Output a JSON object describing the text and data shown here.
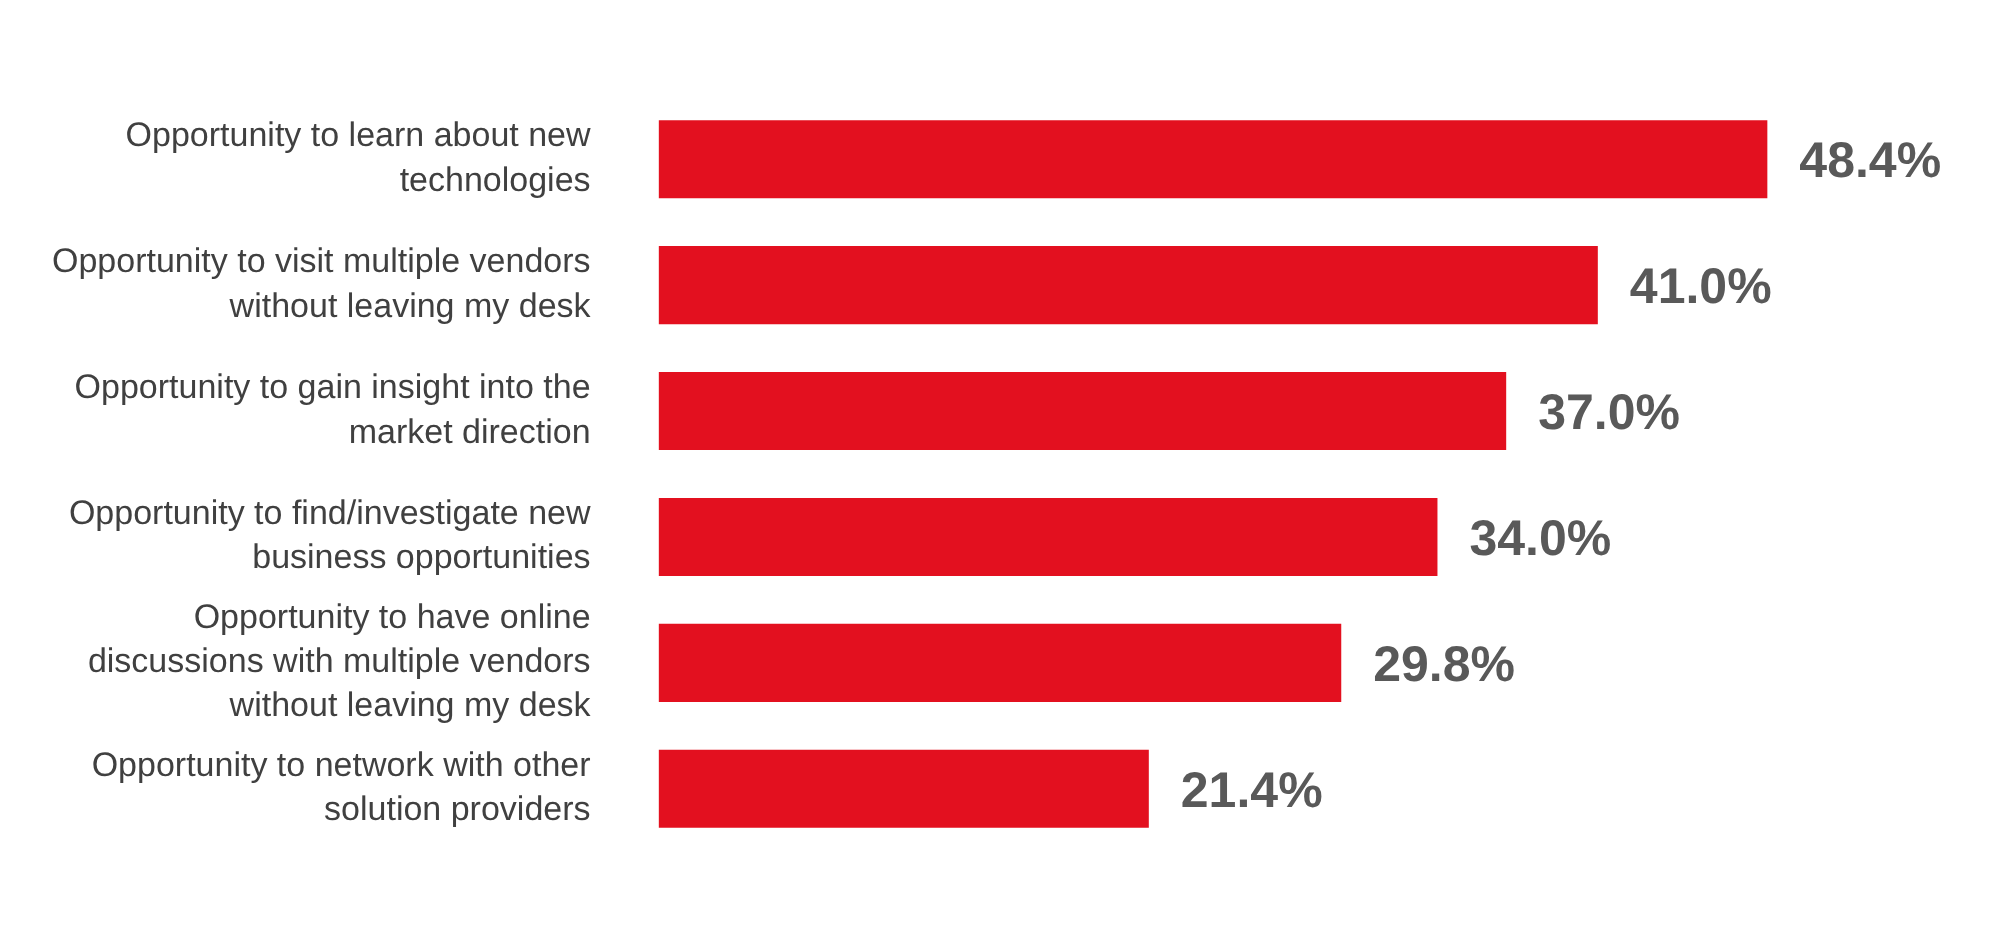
{
  "chart_data": {
    "type": "bar",
    "orientation": "horizontal",
    "categories": [
      "Opportunity to learn about new technologies",
      "Opportunity to visit multiple vendors without leaving my desk",
      "Opportunity to gain insight into the market direction",
      "Opportunity to find/investigate new business opportunities",
      "Opportunity to have online discussions with multiple vendors without leaving my desk",
      "Opportunity to network with other solution providers"
    ],
    "values": [
      48.4,
      41.0,
      37.0,
      34.0,
      29.8,
      21.4
    ],
    "value_labels": [
      "48.4%",
      "41.0%",
      "37.0%",
      "34.0%",
      "29.8%",
      "21.4%"
    ],
    "color": "#e3101f",
    "legend": false
  }
}
